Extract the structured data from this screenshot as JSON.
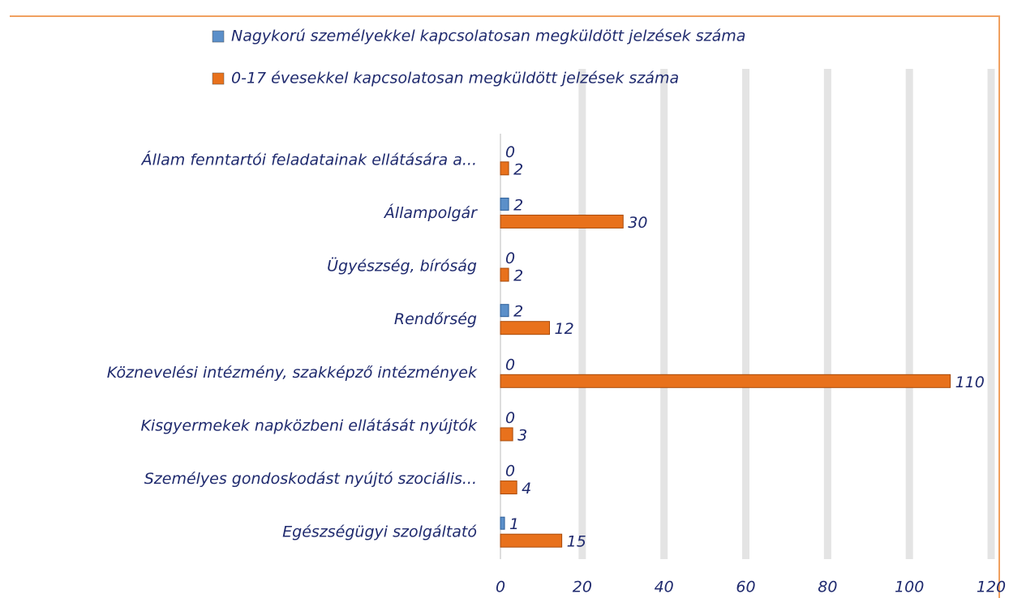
{
  "chart_data": {
    "type": "bar",
    "orientation": "horizontal",
    "categories": [
      "Állam fenntartói feladatainak ellátására a...",
      "Állampolgár",
      "Ügyészség, bíróság",
      "Rendőrség",
      "Köznevelési intézmény, szakképző intézmények",
      "Kisgyermekek napközbeni ellátását nyújtók",
      "Személyes gondoskodást nyújtó szociális...",
      "Egészségügyi szolgáltató"
    ],
    "series": [
      {
        "name": "Nagykorú személyekkel kapcsolatosan megküldött jelzések száma",
        "color": "#5b8fc9",
        "values": [
          0,
          2,
          0,
          2,
          0,
          0,
          0,
          1
        ]
      },
      {
        "name": "0-17 évesekkel kapcsolatosan megküldött jelzések száma",
        "color": "#e8711c",
        "values": [
          2,
          30,
          2,
          12,
          110,
          3,
          4,
          15
        ]
      }
    ],
    "xlim": [
      0,
      120
    ],
    "xticks": [
      0,
      20,
      40,
      60,
      80,
      100,
      120
    ],
    "grid": true,
    "legend": "top"
  }
}
